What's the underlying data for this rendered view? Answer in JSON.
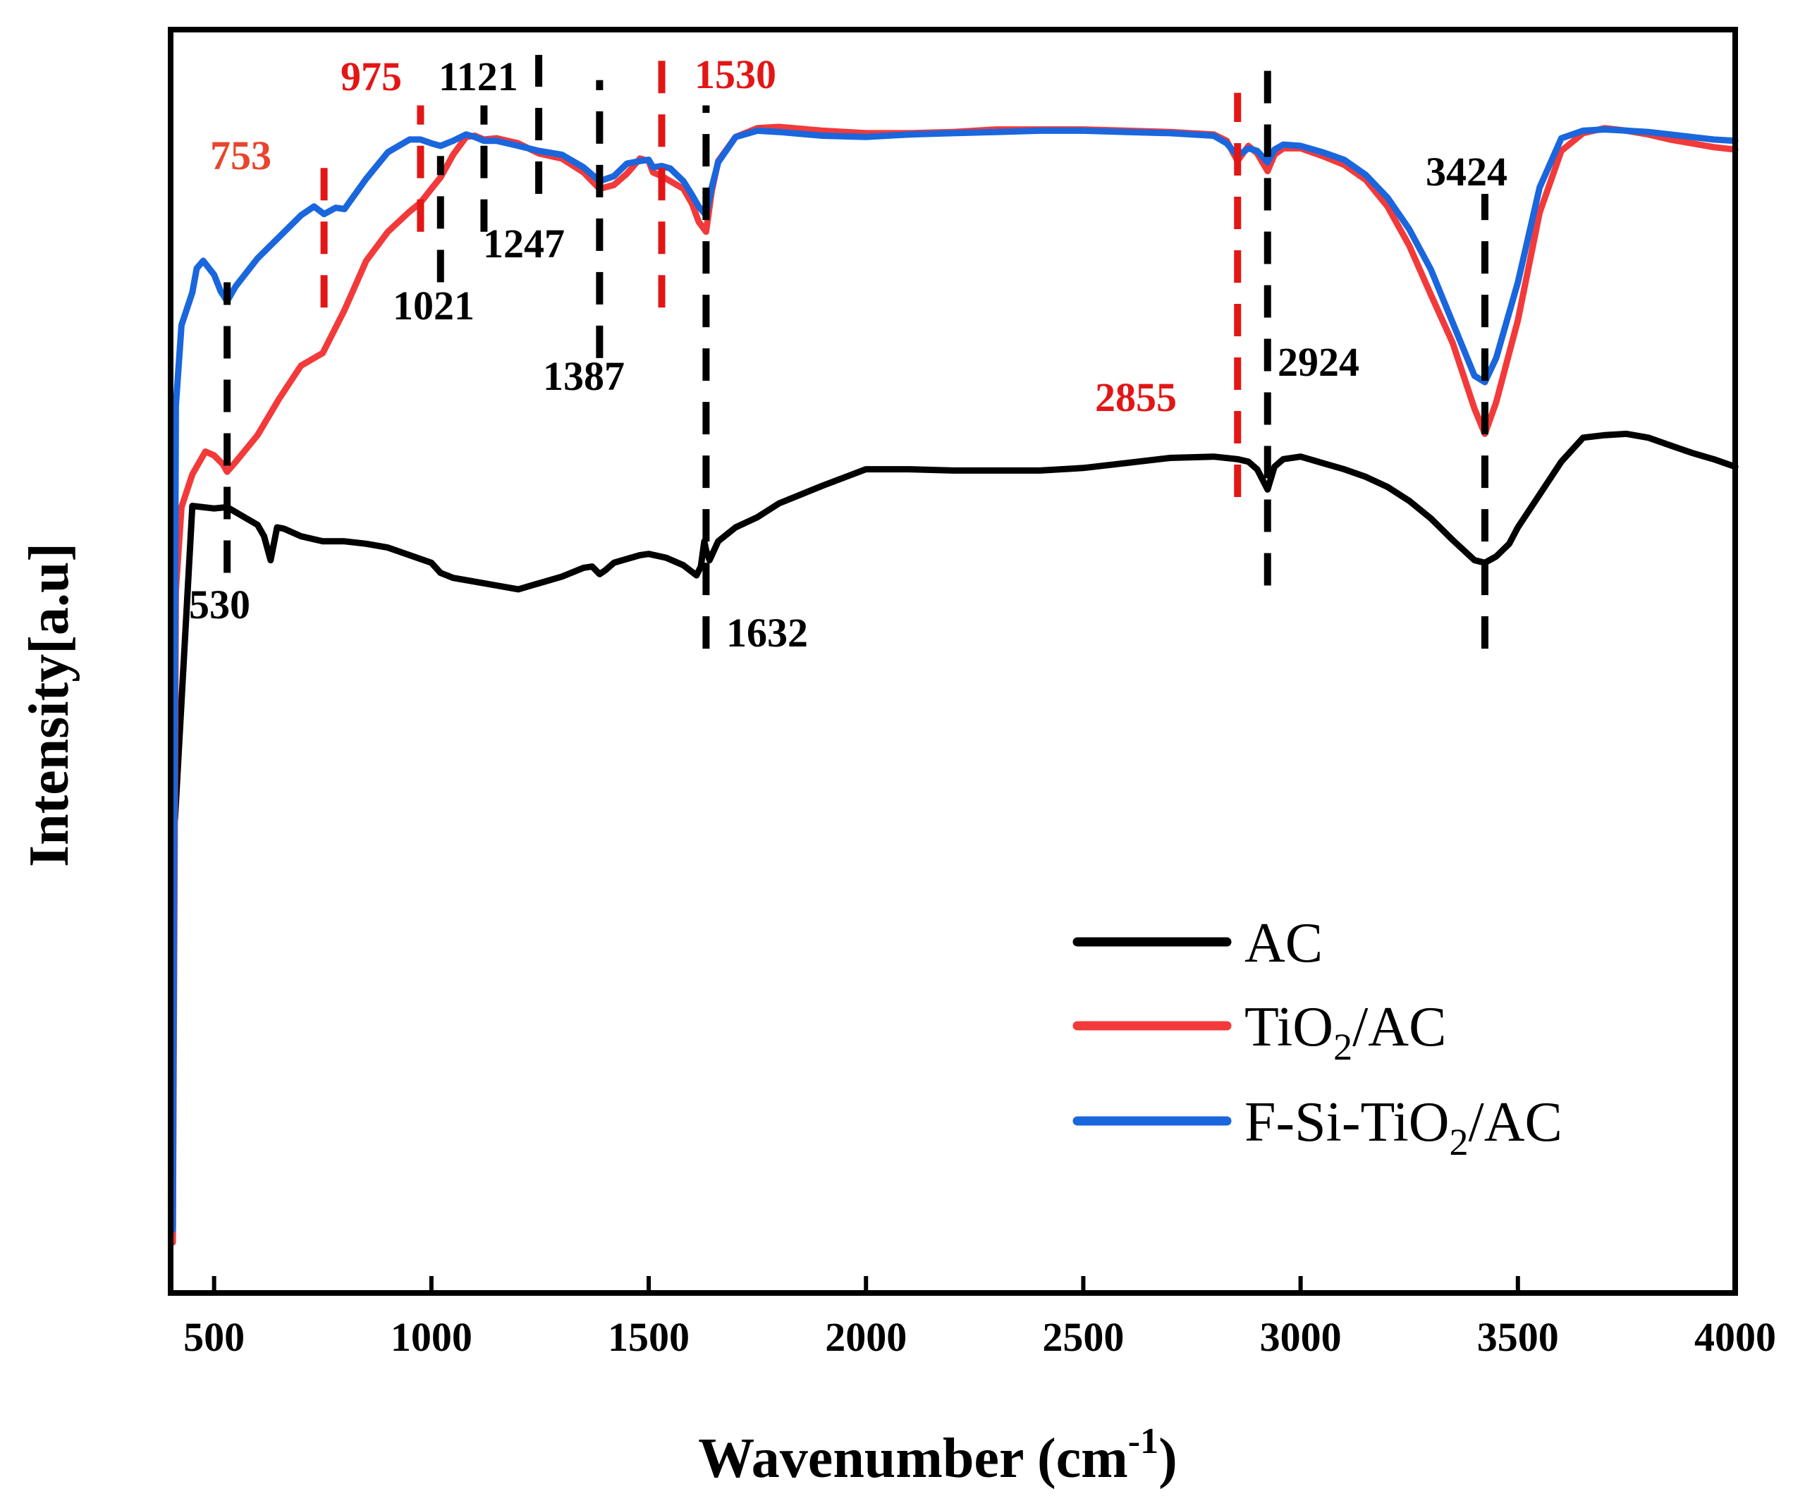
{
  "chart_data": {
    "type": "line",
    "title": "",
    "xlabel": "Wavenumber (cm",
    "xlabel_sup": "-1",
    "xlabel_close": ")",
    "ylabel": "Intensity[a.u]",
    "xlim": [
      400,
      4000
    ],
    "ylim": [
      0,
      100
    ],
    "xticks": [
      500,
      1000,
      1500,
      2000,
      2500,
      3000,
      3500,
      4000
    ],
    "yticks_shown": false,
    "grid": false,
    "legend_position": "bottom-right",
    "series": [
      {
        "name": "AC",
        "legend": {
          "main": "AC"
        },
        "color": "#000000",
        "x": [
          410,
          450,
          500,
          530,
          560,
          600,
          615,
          630,
          645,
          660,
          700,
          750,
          800,
          850,
          900,
          950,
          1000,
          1021,
          1050,
          1100,
          1150,
          1200,
          1250,
          1300,
          1350,
          1370,
          1387,
          1400,
          1420,
          1450,
          1480,
          1500,
          1540,
          1580,
          1610,
          1620,
          1628,
          1632,
          1640,
          1660,
          1700,
          1750,
          1800,
          1900,
          2000,
          2100,
          2200,
          2300,
          2400,
          2500,
          2600,
          2700,
          2800,
          2855,
          2880,
          2900,
          2924,
          2940,
          2960,
          3000,
          3050,
          3100,
          3150,
          3200,
          3250,
          3300,
          3350,
          3400,
          3424,
          3450,
          3480,
          3500,
          3550,
          3600,
          3650,
          3700,
          3750,
          3800,
          3850,
          3900,
          3950,
          4000
        ],
        "y": [
          37.5,
          62.3,
          62.1,
          62.2,
          61.6,
          60.8,
          59.9,
          58.0,
          60.6,
          60.5,
          59.9,
          59.5,
          59.5,
          59.3,
          59.0,
          58.4,
          57.8,
          57.0,
          56.6,
          56.3,
          56.0,
          55.7,
          56.2,
          56.7,
          57.4,
          57.5,
          56.9,
          57.2,
          57.8,
          58.1,
          58.4,
          58.5,
          58.2,
          57.6,
          56.8,
          57.5,
          59.5,
          58.8,
          58.0,
          59.5,
          60.6,
          61.4,
          62.5,
          63.9,
          65.2,
          65.2,
          65.1,
          65.1,
          65.1,
          65.3,
          65.7,
          66.1,
          66.2,
          66.0,
          65.8,
          65.2,
          63.6,
          65.4,
          66.0,
          66.2,
          65.7,
          65.2,
          64.6,
          63.8,
          62.7,
          61.3,
          59.6,
          58.0,
          57.8,
          58.3,
          59.3,
          60.6,
          63.2,
          65.8,
          67.7,
          67.9,
          68.0,
          67.7,
          67.1,
          66.5,
          66.0,
          65.4
        ]
      },
      {
        "name": "TiO2/AC",
        "legend": {
          "main": "TiO",
          "sub": "2",
          "tail": "/AC"
        },
        "color": "#f23a3a",
        "x": [
          405,
          412,
          425,
          450,
          480,
          500,
          520,
          530,
          550,
          600,
          650,
          700,
          750,
          800,
          850,
          900,
          950,
          975,
          1000,
          1021,
          1050,
          1080,
          1100,
          1121,
          1150,
          1200,
          1247,
          1300,
          1350,
          1387,
          1420,
          1450,
          1480,
          1500,
          1510,
          1530,
          1550,
          1580,
          1600,
          1615,
          1632,
          1645,
          1660,
          1700,
          1750,
          1800,
          1900,
          2000,
          2100,
          2200,
          2300,
          2400,
          2500,
          2600,
          2700,
          2800,
          2830,
          2855,
          2880,
          2900,
          2924,
          2940,
          2960,
          3000,
          3050,
          3100,
          3150,
          3200,
          3250,
          3300,
          3350,
          3400,
          3424,
          3450,
          3500,
          3550,
          3600,
          3650,
          3700,
          3750,
          3800,
          3850,
          3900,
          3950,
          4000
        ],
        "y": [
          4,
          55.6,
          62.2,
          64.8,
          66.6,
          66.3,
          65.6,
          65.0,
          65.8,
          67.9,
          70.8,
          73.4,
          74.4,
          77.8,
          81.7,
          84.0,
          85.6,
          86.3,
          87.4,
          88.3,
          90.1,
          91.5,
          91.6,
          91.3,
          91.4,
          91.0,
          90.2,
          89.8,
          88.7,
          87.4,
          87.7,
          88.6,
          89.8,
          89.6,
          88.7,
          88.4,
          88.0,
          87.4,
          86.2,
          84.8,
          84.0,
          87.2,
          89.6,
          91.5,
          92.2,
          92.3,
          92.0,
          91.8,
          91.8,
          91.9,
          92.1,
          92.1,
          92.1,
          92.0,
          91.9,
          91.7,
          91.2,
          89.6,
          90.8,
          90.2,
          88.8,
          90.1,
          90.6,
          90.6,
          90.0,
          89.3,
          88.1,
          86.0,
          82.9,
          79.0,
          75.2,
          70.0,
          68.0,
          70.5,
          77.0,
          85.5,
          90.4,
          91.8,
          92.2,
          92.0,
          91.7,
          91.3,
          91.0,
          90.7,
          90.5
        ]
      },
      {
        "name": "F-Si-TiO2/AC",
        "legend": {
          "main": "F-Si-TiO",
          "sub": "2",
          "tail": "/AC"
        },
        "color": "#1a66dd",
        "x": [
          405,
          412,
          425,
          450,
          460,
          475,
          500,
          515,
          530,
          550,
          600,
          650,
          700,
          730,
          753,
          780,
          800,
          850,
          900,
          950,
          975,
          1000,
          1021,
          1050,
          1080,
          1100,
          1121,
          1150,
          1200,
          1247,
          1300,
          1350,
          1387,
          1420,
          1450,
          1480,
          1500,
          1510,
          1530,
          1550,
          1580,
          1600,
          1615,
          1632,
          1645,
          1660,
          1700,
          1750,
          1800,
          1900,
          2000,
          2100,
          2200,
          2300,
          2400,
          2500,
          2600,
          2700,
          2800,
          2830,
          2855,
          2880,
          2900,
          2924,
          2940,
          2960,
          3000,
          3050,
          3100,
          3150,
          3200,
          3250,
          3300,
          3350,
          3400,
          3424,
          3450,
          3500,
          3550,
          3600,
          3650,
          3700,
          3750,
          3800,
          3850,
          3900,
          3950,
          4000
        ],
        "y": [
          5,
          70.2,
          76.6,
          79.2,
          81.1,
          81.7,
          80.6,
          79.3,
          78.5,
          79.7,
          81.9,
          83.6,
          85.3,
          86.0,
          85.4,
          85.9,
          85.8,
          88.2,
          90.3,
          91.3,
          91.3,
          91.0,
          90.8,
          91.2,
          91.7,
          91.5,
          91.2,
          91.2,
          90.8,
          90.4,
          90.1,
          89.1,
          88.0,
          88.4,
          89.4,
          89.6,
          89.7,
          89.1,
          89.2,
          89.0,
          88.0,
          86.9,
          86.0,
          85.3,
          87.5,
          89.5,
          91.5,
          92.0,
          91.9,
          91.6,
          91.5,
          91.7,
          91.8,
          91.9,
          92.0,
          92.0,
          91.9,
          91.8,
          91.6,
          91.0,
          90.0,
          90.6,
          90.4,
          89.5,
          90.5,
          90.9,
          90.8,
          90.3,
          89.7,
          88.5,
          86.7,
          84.2,
          81.0,
          76.8,
          72.6,
          72.1,
          74.0,
          80.0,
          87.5,
          91.4,
          92.0,
          92.1,
          92.0,
          91.9,
          91.7,
          91.5,
          91.3,
          91.2
        ]
      }
    ],
    "annotations": [
      {
        "text": "753",
        "color": "#e8452e"
      },
      {
        "text": "975",
        "color": "#e31616"
      },
      {
        "text": "1121",
        "color": "#000000"
      },
      {
        "text": "1530",
        "color": "#e31616"
      },
      {
        "text": "1021",
        "color": "#000000"
      },
      {
        "text": "1247",
        "color": "#000000"
      },
      {
        "text": "1387",
        "color": "#000000"
      },
      {
        "text": "530",
        "color": "#000000"
      },
      {
        "text": "1632",
        "color": "#000000"
      },
      {
        "text": "2855",
        "color": "#e31616"
      },
      {
        "text": "2924",
        "color": "#000000"
      },
      {
        "text": "3424",
        "color": "#000000"
      }
    ],
    "marker_lines": [
      {
        "wavenumber": 530,
        "color": "#000000",
        "from": 57,
        "to": 80
      },
      {
        "wavenumber": 753,
        "color": "#e31616",
        "from": 78,
        "to": 90
      },
      {
        "wavenumber": 975,
        "color": "#e31616",
        "from": 84,
        "to": 94
      },
      {
        "wavenumber": 1021,
        "color": "#000000",
        "from": 80,
        "to": 90
      },
      {
        "wavenumber": 1121,
        "color": "#000000",
        "from": 84,
        "to": 94
      },
      {
        "wavenumber": 1247,
        "color": "#000000",
        "from": 87,
        "to": 98
      },
      {
        "wavenumber": 1387,
        "color": "#000000",
        "from": 74,
        "to": 96
      },
      {
        "wavenumber": 1530,
        "color": "#e31616",
        "from": 78,
        "to": 98
      },
      {
        "wavenumber": 1632,
        "color": "#000000",
        "from": 51,
        "to": 94
      },
      {
        "wavenumber": 2855,
        "color": "#e31616",
        "from": 63,
        "to": 95
      },
      {
        "wavenumber": 2924,
        "color": "#000000",
        "from": 56,
        "to": 98
      },
      {
        "wavenumber": 3424,
        "color": "#000000",
        "from": 51,
        "to": 87
      }
    ]
  }
}
